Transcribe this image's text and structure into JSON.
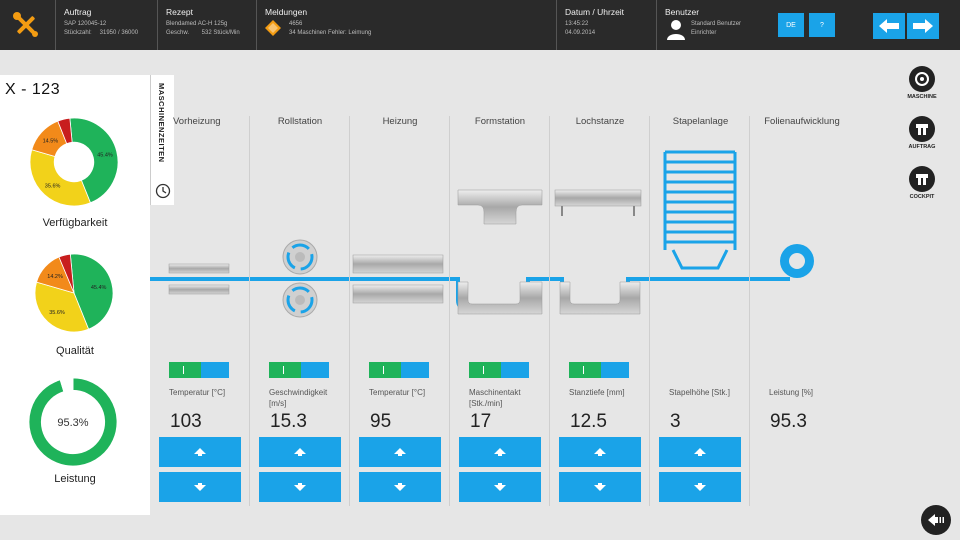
{
  "header": {
    "auftrag": {
      "title": "Auftrag",
      "line1": "SAP 120045-12",
      "line2_key": "Stückzahl:",
      "line2_val": "31950 / 36000"
    },
    "rezept": {
      "title": "Rezept",
      "line1": "Blendamed AC-H 125g",
      "line2_key": "Geschw.",
      "line2_val": "532 Stück/Min"
    },
    "meldungen": {
      "title": "Meldungen",
      "line1": "4656",
      "line2": "34 Maschinen Fehler: Leimung"
    },
    "datum": {
      "title": "Datum / Uhrzeit",
      "time": "13:45:22",
      "date": "04.09.2014"
    },
    "benutzer": {
      "title": "Benutzer",
      "name": "Standard Benutzer",
      "role": "Einrichter"
    },
    "lang_button": "DE",
    "help_button": "?"
  },
  "left_panel": {
    "machine": "X - 123",
    "tab_label": "MASCHINENZEITEN",
    "charts": [
      {
        "label": "Verfügbarkeit",
        "segments": [
          {
            "value": 45.4,
            "color": "#1fb35a",
            "text": "45.4%"
          },
          {
            "value": 35.6,
            "color": "#f2d21a",
            "text": "35.6%"
          },
          {
            "value": 14.5,
            "color": "#f28a1a",
            "text": "14.5%"
          },
          {
            "value": 4.5,
            "color": "#c81e1e",
            "text": ""
          }
        ]
      },
      {
        "label": "Qualität",
        "segments": [
          {
            "value": 45.4,
            "color": "#1fb35a",
            "text": "45.4%"
          },
          {
            "value": 35.6,
            "color": "#f2d21a",
            "text": "35.6%"
          },
          {
            "value": 14.2,
            "color": "#f28a1a",
            "text": "14.2%"
          },
          {
            "value": 4.8,
            "color": "#c81e1e",
            "text": ""
          }
        ]
      },
      {
        "label": "Leistung",
        "segments": [
          {
            "value": 95.3,
            "color": "#1fb35a",
            "text": ""
          },
          {
            "value": 4.7,
            "color": "#ffffff",
            "text": ""
          }
        ],
        "center_text": "95.3%"
      }
    ]
  },
  "stations": [
    {
      "name": "Vorheizung",
      "param": "Temperatur [°C]",
      "value": "103"
    },
    {
      "name": "Rollstation",
      "param": "Geschwindigkeit [m/s]",
      "value": "15.3"
    },
    {
      "name": "Heizung",
      "param": "Temperatur [°C]",
      "value": "95"
    },
    {
      "name": "Formstation",
      "param": "Maschinentakt [Stk./min]",
      "value": "17"
    },
    {
      "name": "Lochstanze",
      "param": "Stanztiefe [mm]",
      "value": "12.5"
    },
    {
      "name": "Stapelanlage",
      "param": "Stapelhöhe [Stk.]",
      "value": "3"
    },
    {
      "name": "Folienaufwicklung",
      "param": "Leistung [%]",
      "value": "95.3"
    }
  ],
  "right_nav": [
    {
      "label": "MASCHINE",
      "icon": "machine-icon"
    },
    {
      "label": "AUFTRAG",
      "icon": "order-icon"
    },
    {
      "label": "COCKPIT",
      "icon": "cockpit-icon"
    }
  ],
  "colors": {
    "accent": "#1aa3e8",
    "green": "#1fb35a",
    "header": "#2a2a2a"
  }
}
